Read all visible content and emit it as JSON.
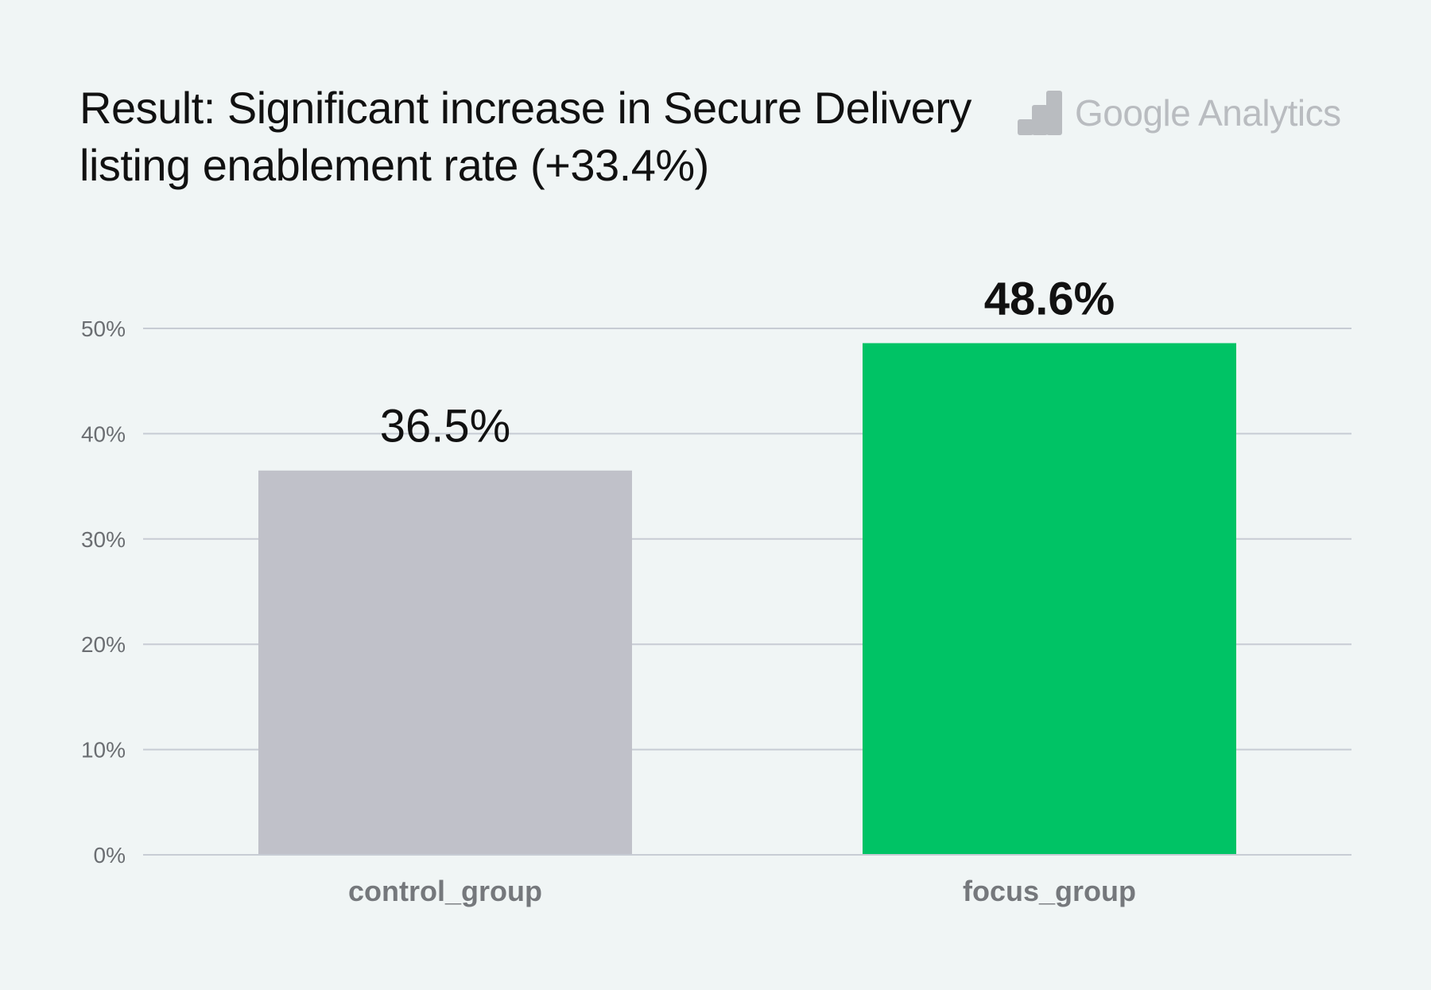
{
  "title": "Result: Significant increase in Secure Delivery listing enablement rate (+33.4%)",
  "brand": {
    "name": "Google Analytics",
    "icon": "google-analytics-logo-icon",
    "color": "#b9bcc0"
  },
  "chart_data": {
    "type": "bar",
    "categories": [
      "control_group",
      "focus_group"
    ],
    "values": [
      36.5,
      48.6
    ],
    "value_labels": [
      "36.5%",
      "48.6%"
    ],
    "bar_colors": [
      "#c0c1c9",
      "#00c365"
    ],
    "highlight_index": 1,
    "ylim": [
      0,
      50
    ],
    "yticks": [
      0,
      10,
      20,
      30,
      40,
      50
    ],
    "ytick_labels": [
      "0%",
      "10%",
      "20%",
      "30%",
      "40%",
      "50%"
    ],
    "grid": true,
    "legend": "none",
    "xlabel": "",
    "ylabel": ""
  }
}
